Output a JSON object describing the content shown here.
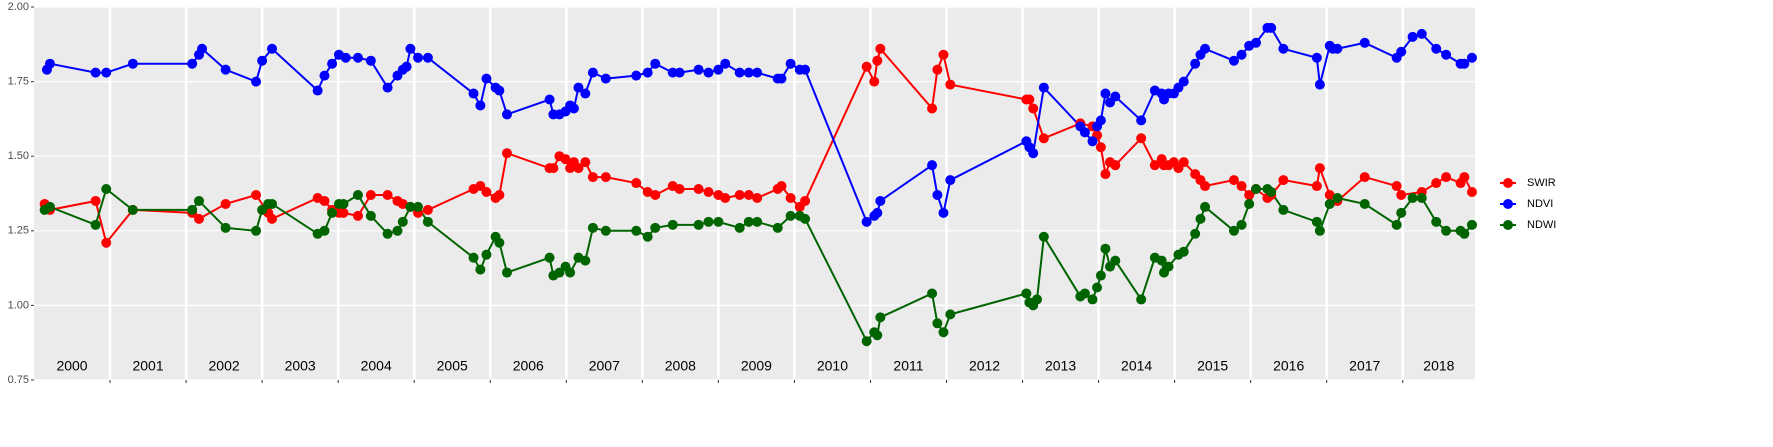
{
  "chart_data": {
    "type": "line",
    "xlim": [
      2000,
      2018.95
    ],
    "xticks": [
      2001,
      2002,
      2003,
      2004,
      2005,
      2006,
      2007,
      2008,
      2009,
      2010,
      2011,
      2012,
      2013,
      2014,
      2015,
      2016,
      2017,
      2018
    ],
    "year_labels": [
      "2000",
      "2001",
      "2002",
      "2003",
      "2004",
      "2005",
      "2006",
      "2007",
      "2008",
      "2009",
      "2010",
      "2011",
      "2012",
      "2013",
      "2014",
      "2015",
      "2016",
      "2017",
      "2018"
    ],
    "ylim": [
      0.75,
      2.0
    ],
    "yticks": [
      0.75,
      {
        "value": 1.0,
        "label": "1.00"
      },
      1.25,
      {
        "value": 1.5,
        "label": "1.50"
      },
      1.75,
      {
        "value": 2.0,
        "label": "2.00"
      }
    ],
    "grid": true,
    "legend": "right",
    "series": [
      {
        "name": "SWIR",
        "color": "#ff0000",
        "x": [
          2000.14,
          2000.21,
          2000.81,
          2000.95,
          2001.3,
          2002.08,
          2002.17,
          2002.52,
          2002.92,
          2003.08,
          2003.13,
          2003.73,
          2003.82,
          2003.92,
          2004.01,
          2004.07,
          2004.26,
          2004.43,
          2004.65,
          2004.78,
          2004.85,
          2004.95,
          2005.05,
          2005.18,
          2005.78,
          2005.87,
          2005.95,
          2006.07,
          2006.12,
          2006.22,
          2006.78,
          2006.83,
          2006.91,
          2006.99,
          2007.05,
          2007.1,
          2007.16,
          2007.25,
          2007.35,
          2007.52,
          2007.92,
          2008.07,
          2008.17,
          2008.4,
          2008.49,
          2008.74,
          2008.87,
          2009.0,
          2009.09,
          2009.28,
          2009.4,
          2009.51,
          2009.78,
          2009.83,
          2009.95,
          2010.07,
          2010.14,
          2010.95,
          2011.05,
          2011.09,
          2011.13,
          2011.81,
          2011.88,
          2011.96,
          2012.05,
          2013.05,
          2013.09,
          2013.14,
          2013.28,
          2013.76,
          2013.92,
          2013.98,
          2014.03,
          2014.09,
          2014.15,
          2014.22,
          2014.56,
          2014.74,
          2014.83,
          2014.86,
          2014.92,
          2014.99,
          2015.05,
          2015.12,
          2015.27,
          2015.34,
          2015.4,
          2015.78,
          2015.88,
          2015.98,
          2016.07,
          2016.22,
          2016.27,
          2016.43,
          2016.87,
          2016.91,
          2017.04,
          2017.14,
          2017.5,
          2017.92,
          2017.98,
          2018.25,
          2018.44,
          2018.57,
          2018.76,
          2018.81,
          2018.91
        ],
        "values": [
          1.34,
          1.32,
          1.35,
          1.21,
          1.32,
          1.31,
          1.29,
          1.34,
          1.37,
          1.31,
          1.29,
          1.36,
          1.35,
          1.32,
          1.31,
          1.31,
          1.3,
          1.37,
          1.37,
          1.35,
          1.34,
          1.33,
          1.31,
          1.32,
          1.39,
          1.4,
          1.38,
          1.36,
          1.37,
          1.51,
          1.46,
          1.46,
          1.5,
          1.49,
          1.46,
          1.48,
          1.46,
          1.48,
          1.43,
          1.43,
          1.41,
          1.38,
          1.37,
          1.4,
          1.39,
          1.39,
          1.38,
          1.37,
          1.36,
          1.37,
          1.37,
          1.36,
          1.39,
          1.4,
          1.36,
          1.33,
          1.35,
          1.8,
          1.75,
          1.82,
          1.86,
          1.66,
          1.79,
          1.84,
          1.74,
          1.69,
          1.69,
          1.66,
          1.56,
          1.61,
          1.6,
          1.57,
          1.53,
          1.44,
          1.48,
          1.47,
          1.56,
          1.47,
          1.49,
          1.47,
          1.47,
          1.48,
          1.46,
          1.48,
          1.44,
          1.42,
          1.4,
          1.42,
          1.4,
          1.37,
          1.39,
          1.36,
          1.37,
          1.42,
          1.4,
          1.46,
          1.37,
          1.35,
          1.43,
          1.4,
          1.37,
          1.38,
          1.41,
          1.43,
          1.41,
          1.43,
          1.38
        ]
      },
      {
        "name": "NDVI",
        "color": "#0000ff",
        "x": [
          2000.17,
          2000.21,
          2000.81,
          2000.95,
          2001.3,
          2002.08,
          2002.17,
          2002.21,
          2002.52,
          2002.92,
          2003.0,
          2003.13,
          2003.73,
          2003.82,
          2003.92,
          2004.01,
          2004.1,
          2004.26,
          2004.43,
          2004.65,
          2004.78,
          2004.85,
          2004.9,
          2004.95,
          2005.05,
          2005.18,
          2005.78,
          2005.87,
          2005.95,
          2006.07,
          2006.12,
          2006.22,
          2006.78,
          2006.83,
          2006.91,
          2006.99,
          2007.05,
          2007.1,
          2007.16,
          2007.25,
          2007.35,
          2007.52,
          2007.92,
          2008.07,
          2008.17,
          2008.4,
          2008.49,
          2008.74,
          2008.87,
          2009.0,
          2009.09,
          2009.28,
          2009.4,
          2009.51,
          2009.78,
          2009.83,
          2009.95,
          2010.07,
          2010.14,
          2010.95,
          2011.05,
          2011.09,
          2011.13,
          2011.81,
          2011.88,
          2011.96,
          2012.05,
          2013.05,
          2013.09,
          2013.14,
          2013.28,
          2013.76,
          2013.82,
          2013.92,
          2013.98,
          2014.03,
          2014.09,
          2014.15,
          2014.22,
          2014.56,
          2014.74,
          2014.83,
          2014.86,
          2014.92,
          2014.99,
          2015.05,
          2015.12,
          2015.27,
          2015.34,
          2015.4,
          2015.78,
          2015.88,
          2015.98,
          2016.07,
          2016.22,
          2016.27,
          2016.43,
          2016.87,
          2016.91,
          2017.04,
          2017.08,
          2017.14,
          2017.5,
          2017.92,
          2017.98,
          2018.13,
          2018.25,
          2018.44,
          2018.57,
          2018.76,
          2018.81,
          2018.91
        ],
        "values": [
          1.79,
          1.81,
          1.78,
          1.78,
          1.81,
          1.81,
          1.84,
          1.86,
          1.79,
          1.75,
          1.82,
          1.86,
          1.72,
          1.77,
          1.81,
          1.84,
          1.83,
          1.83,
          1.82,
          1.73,
          1.77,
          1.79,
          1.8,
          1.86,
          1.83,
          1.83,
          1.71,
          1.67,
          1.76,
          1.73,
          1.72,
          1.64,
          1.69,
          1.64,
          1.64,
          1.65,
          1.67,
          1.66,
          1.73,
          1.71,
          1.78,
          1.76,
          1.77,
          1.78,
          1.81,
          1.78,
          1.78,
          1.79,
          1.78,
          1.79,
          1.81,
          1.78,
          1.78,
          1.78,
          1.76,
          1.76,
          1.81,
          1.79,
          1.79,
          1.28,
          1.3,
          1.31,
          1.35,
          1.47,
          1.37,
          1.31,
          1.42,
          1.55,
          1.53,
          1.51,
          1.73,
          1.6,
          1.58,
          1.55,
          1.6,
          1.62,
          1.71,
          1.68,
          1.7,
          1.62,
          1.72,
          1.71,
          1.69,
          1.71,
          1.71,
          1.73,
          1.75,
          1.81,
          1.84,
          1.86,
          1.82,
          1.84,
          1.87,
          1.88,
          1.93,
          1.93,
          1.86,
          1.83,
          1.74,
          1.87,
          1.86,
          1.86,
          1.88,
          1.83,
          1.85,
          1.9,
          1.91,
          1.86,
          1.84,
          1.81,
          1.81,
          1.83
        ]
      },
      {
        "name": "NDWI",
        "color": "#006400",
        "x": [
          2000.14,
          2000.21,
          2000.81,
          2000.95,
          2001.3,
          2002.08,
          2002.17,
          2002.52,
          2002.92,
          2003.0,
          2003.08,
          2003.13,
          2003.73,
          2003.82,
          2003.92,
          2004.01,
          2004.07,
          2004.26,
          2004.43,
          2004.65,
          2004.78,
          2004.85,
          2004.95,
          2005.05,
          2005.18,
          2005.78,
          2005.87,
          2005.95,
          2006.07,
          2006.12,
          2006.22,
          2006.78,
          2006.83,
          2006.91,
          2006.99,
          2007.05,
          2007.16,
          2007.25,
          2007.35,
          2007.52,
          2007.92,
          2008.07,
          2008.17,
          2008.4,
          2008.74,
          2008.87,
          2009.0,
          2009.28,
          2009.4,
          2009.51,
          2009.78,
          2009.95,
          2010.07,
          2010.14,
          2010.95,
          2011.05,
          2011.09,
          2011.13,
          2011.81,
          2011.88,
          2011.96,
          2012.05,
          2013.05,
          2013.09,
          2013.14,
          2013.19,
          2013.28,
          2013.76,
          2013.82,
          2013.92,
          2013.98,
          2014.03,
          2014.09,
          2014.15,
          2014.22,
          2014.56,
          2014.74,
          2014.83,
          2014.86,
          2014.92,
          2015.05,
          2015.12,
          2015.27,
          2015.34,
          2015.4,
          2015.78,
          2015.88,
          2015.98,
          2016.07,
          2016.22,
          2016.27,
          2016.43,
          2016.87,
          2016.91,
          2017.04,
          2017.14,
          2017.5,
          2017.92,
          2017.98,
          2018.13,
          2018.25,
          2018.44,
          2018.57,
          2018.76,
          2018.81,
          2018.91
        ],
        "values": [
          1.32,
          1.33,
          1.27,
          1.39,
          1.32,
          1.32,
          1.35,
          1.26,
          1.25,
          1.32,
          1.34,
          1.34,
          1.24,
          1.25,
          1.31,
          1.34,
          1.34,
          1.37,
          1.3,
          1.24,
          1.25,
          1.28,
          1.33,
          1.33,
          1.28,
          1.16,
          1.12,
          1.17,
          1.23,
          1.21,
          1.11,
          1.16,
          1.1,
          1.11,
          1.13,
          1.11,
          1.16,
          1.15,
          1.26,
          1.25,
          1.25,
          1.23,
          1.26,
          1.27,
          1.27,
          1.28,
          1.28,
          1.26,
          1.28,
          1.28,
          1.26,
          1.3,
          1.3,
          1.29,
          0.88,
          0.91,
          0.9,
          0.96,
          1.04,
          0.94,
          0.91,
          0.97,
          1.04,
          1.01,
          1.0,
          1.02,
          1.23,
          1.03,
          1.04,
          1.02,
          1.06,
          1.1,
          1.19,
          1.13,
          1.15,
          1.02,
          1.16,
          1.15,
          1.11,
          1.13,
          1.17,
          1.18,
          1.24,
          1.29,
          1.33,
          1.25,
          1.27,
          1.34,
          1.39,
          1.39,
          1.38,
          1.32,
          1.28,
          1.25,
          1.34,
          1.36,
          1.34,
          1.27,
          1.31,
          1.36,
          1.36,
          1.28,
          1.25,
          1.25,
          1.24,
          1.27
        ]
      }
    ]
  }
}
